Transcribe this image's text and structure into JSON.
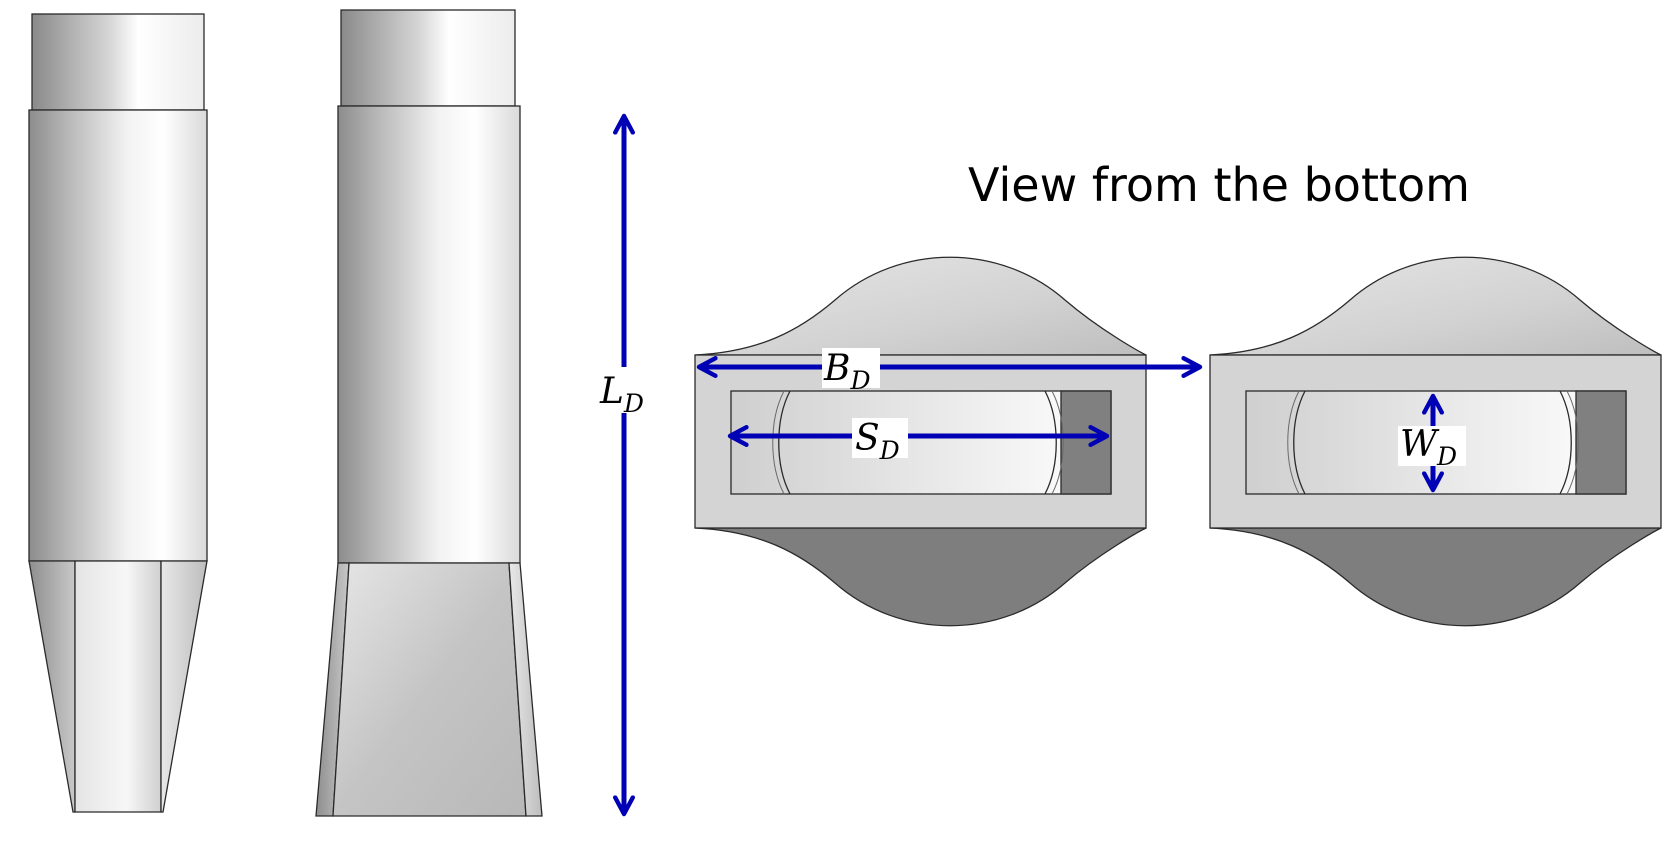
{
  "title": "View from the bottom",
  "labels": {
    "length": {
      "main": "L",
      "sub": "D"
    },
    "breadth": {
      "main": "B",
      "sub": "D"
    },
    "span": {
      "main": "S",
      "sub": "D"
    },
    "width": {
      "main": "W",
      "sub": "D"
    }
  },
  "colors": {
    "dimension": "#0000b4",
    "outline": "#2a2a2a",
    "light_surface": "#d4d4d4",
    "dark_surface": "#7e7e7e"
  }
}
